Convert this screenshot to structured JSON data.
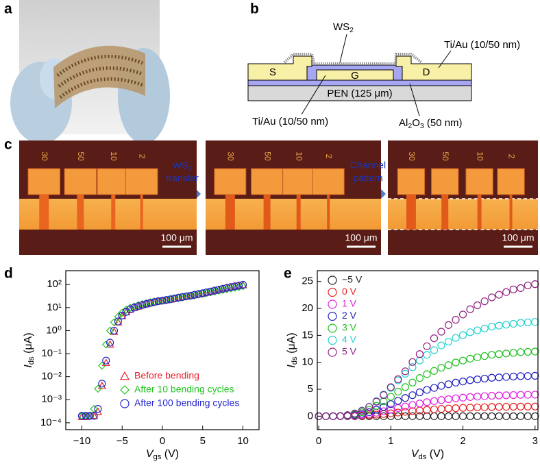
{
  "panel_labels": [
    "a",
    "b",
    "c",
    "d",
    "e"
  ],
  "diagram_b": {
    "ws2": {
      "main": "WS",
      "sub": "2"
    },
    "top_electrode": "Ti/Au (10/50 nm)",
    "source": "S",
    "gate": "G",
    "drain": "D",
    "substrate": "PEN (125 μm)",
    "bottom_electrode": "Ti/Au (10/50 nm)",
    "dielectric": {
      "main": "Al",
      "sub": "2",
      "main2": "O",
      "sub2": "3",
      "rest": " (50 nm)"
    }
  },
  "panel_c": {
    "chip_labels": [
      [
        "30",
        "50",
        "10",
        "2"
      ],
      [
        "30",
        "50",
        "10",
        "2"
      ],
      [
        "30",
        "50",
        "10",
        "2"
      ]
    ],
    "scale_bars": [
      "100 μm",
      "100 μm",
      "100 μm"
    ],
    "step1": {
      "main": "WS",
      "sub": "2",
      "rest": "transfer"
    },
    "step2": [
      "Channel",
      "pattern"
    ]
  },
  "chart_data": [
    {
      "type": "scatter",
      "log_y": true,
      "legend": "lower right",
      "xlabel": {
        "main": "V",
        "sub": "gs",
        "rest": " (V)"
      },
      "ylabel": {
        "main": "I",
        "sub": "ds",
        "rest": " (μA)"
      },
      "xlim": [
        -12,
        12
      ],
      "xticks": [
        {
          "value": -10,
          "label": "−10"
        },
        {
          "value": -5,
          "label": "−5"
        },
        0,
        5,
        10
      ],
      "ylim": [
        5e-05,
        400
      ],
      "yticks": [
        {
          "value": 0.0001,
          "label": "10⁻⁴"
        },
        {
          "value": 0.001,
          "label": "10⁻³"
        },
        {
          "value": 0.01,
          "label": "10⁻²"
        },
        {
          "value": 0.1,
          "label": "10⁻¹"
        },
        {
          "value": 1,
          "label": "10⁰"
        },
        {
          "value": 10,
          "label": "10¹"
        },
        {
          "value": 100,
          "label": "10²"
        }
      ],
      "x": [
        -10,
        -9.5,
        -9,
        -8.5,
        -8,
        -7.5,
        -7,
        -6.5,
        -6,
        -5.5,
        -5,
        -4.5,
        -4,
        -3.5,
        -3,
        -2.5,
        -2,
        -1.5,
        -1,
        -0.5,
        0,
        0.5,
        1,
        1.5,
        2,
        2.5,
        3,
        3.5,
        4,
        4.5,
        5,
        5.5,
        6,
        6.5,
        7,
        7.5,
        8,
        8.5,
        9,
        9.5,
        10
      ],
      "series": [
        {
          "name": "Before bending",
          "color": "#e8202a",
          "marker": "triangle",
          "values": [
            0.00018,
            0.00018,
            0.0002,
            0.0002,
            0.0003,
            0.004,
            0.04,
            0.25,
            0.9,
            2.3,
            4.3,
            6.3,
            8.2,
            9.8,
            11.3,
            12.8,
            14.2,
            15.7,
            17.2,
            18.6,
            19.8,
            21.2,
            22.8,
            24.6,
            26.5,
            28.5,
            30.5,
            32.5,
            35,
            38,
            41,
            45,
            49,
            54,
            59,
            64,
            70,
            76,
            82,
            88,
            95
          ]
        },
        {
          "name": "After 10 bending cycles",
          "color": "#22c322",
          "marker": "diamond",
          "values": [
            0.0002,
            0.0002,
            0.0002,
            0.0004,
            0.003,
            0.03,
            0.25,
            1,
            2.3,
            4,
            6,
            8,
            9.8,
            11.3,
            12.8,
            14.2,
            15.5,
            17,
            18.3,
            19.5,
            20.5,
            21.8,
            23,
            24.5,
            26,
            28,
            30,
            32,
            34,
            37,
            40,
            43,
            46,
            50,
            54,
            58,
            63,
            68,
            73,
            78,
            85
          ]
        },
        {
          "name": "After 100 bending cycles",
          "color": "#2424d0",
          "marker": "circle",
          "values": [
            0.0002,
            0.0002,
            0.0002,
            0.0002,
            0.0004,
            0.005,
            0.05,
            0.3,
            1,
            2.5,
            4.5,
            6.5,
            8.5,
            10,
            11.5,
            13,
            14.5,
            16,
            17.5,
            19,
            20,
            21.5,
            23,
            25,
            27,
            29,
            31,
            33,
            36,
            39,
            42,
            46,
            50,
            55,
            60,
            66,
            72,
            78,
            84,
            90,
            98
          ]
        }
      ]
    },
    {
      "type": "scatter",
      "log_y": false,
      "legend": "upper left",
      "xlabel": {
        "main": "V",
        "sub": "ds",
        "rest": " (V)"
      },
      "ylabel": {
        "main": "I",
        "sub": "ds",
        "rest": " (μA)"
      },
      "xlim": [
        -0.02,
        3.04
      ],
      "xticks": [
        0,
        1,
        2,
        3
      ],
      "ylim": [
        -2.5,
        27
      ],
      "yticks": [
        0,
        5,
        10,
        15,
        20,
        25
      ],
      "x": [
        0,
        0.1,
        0.2,
        0.3,
        0.4,
        0.5,
        0.6,
        0.7,
        0.8,
        0.9,
        1,
        1.1,
        1.2,
        1.3,
        1.4,
        1.5,
        1.6,
        1.7,
        1.8,
        1.9,
        2,
        2.1,
        2.2,
        2.3,
        2.4,
        2.5,
        2.6,
        2.7,
        2.8,
        2.9,
        3
      ],
      "series": [
        {
          "name": "−5 V",
          "color": "#222222",
          "marker": "circle",
          "values": [
            0,
            0,
            0,
            0,
            0,
            0,
            0,
            0,
            0,
            0,
            0,
            0,
            0,
            0,
            0,
            0,
            0,
            0,
            0,
            0,
            0,
            0,
            0,
            0,
            0,
            0,
            0,
            0,
            0,
            0,
            0
          ]
        },
        {
          "name": "0 V",
          "color": "#e82020",
          "marker": "circle",
          "values": [
            0,
            0,
            0,
            0.01,
            0.02,
            0.05,
            0.11,
            0.18,
            0.29,
            0.41,
            0.54,
            0.68,
            0.81,
            0.94,
            1.06,
            1.17,
            1.26,
            1.35,
            1.42,
            1.49,
            1.55,
            1.6,
            1.64,
            1.67,
            1.71,
            1.73,
            1.75,
            1.76,
            1.78,
            1.79,
            1.8
          ]
        },
        {
          "name": "1 V",
          "color": "#e020e0",
          "marker": "circle",
          "values": [
            0,
            0,
            0,
            0.01,
            0.05,
            0.12,
            0.24,
            0.4,
            0.64,
            0.92,
            1.2,
            1.52,
            1.8,
            2.08,
            2.36,
            2.6,
            2.8,
            3.0,
            3.16,
            3.32,
            3.44,
            3.56,
            3.64,
            3.72,
            3.8,
            3.84,
            3.88,
            3.92,
            3.96,
            3.98,
            4.0
          ]
        },
        {
          "name": "2 V",
          "color": "#2020c0",
          "marker": "circle",
          "values": [
            0,
            0,
            0,
            0.02,
            0.09,
            0.23,
            0.45,
            0.75,
            1.2,
            1.73,
            2.25,
            2.85,
            3.38,
            3.9,
            4.43,
            4.88,
            5.25,
            5.63,
            5.93,
            6.23,
            6.45,
            6.68,
            6.83,
            6.98,
            7.13,
            7.2,
            7.28,
            7.35,
            7.43,
            7.46,
            7.5
          ]
        },
        {
          "name": "3 V",
          "color": "#20c020",
          "marker": "circle",
          "values": [
            0,
            0,
            0,
            0.04,
            0.14,
            0.36,
            0.72,
            1.2,
            1.92,
            2.76,
            3.6,
            4.56,
            5.4,
            6.24,
            7.08,
            7.8,
            8.4,
            9.0,
            9.48,
            9.96,
            10.32,
            10.68,
            10.92,
            11.16,
            11.4,
            11.52,
            11.64,
            11.76,
            11.88,
            11.94,
            12.0
          ]
        },
        {
          "name": "4 V",
          "color": "#20d0d0",
          "marker": "circle",
          "values": [
            0,
            0,
            0,
            0.05,
            0.21,
            0.53,
            1.05,
            1.75,
            2.8,
            4.03,
            5.25,
            6.65,
            7.88,
            9.1,
            10.33,
            11.38,
            12.25,
            13.13,
            13.83,
            14.53,
            15.05,
            15.58,
            15.93,
            16.28,
            16.63,
            16.8,
            16.98,
            17.15,
            17.33,
            17.41,
            17.5
          ]
        },
        {
          "name": "5 V",
          "color": "#902080",
          "marker": "circle",
          "values": [
            0,
            0,
            0,
            0.05,
            0.2,
            0.49,
            0.98,
            1.72,
            2.7,
            3.92,
            5.39,
            6.86,
            8.33,
            10.05,
            11.52,
            12.99,
            14.46,
            15.68,
            16.91,
            17.89,
            18.87,
            19.85,
            20.58,
            21.32,
            22.05,
            22.54,
            23.03,
            23.52,
            23.77,
            24.26,
            24.5
          ]
        }
      ]
    }
  ]
}
